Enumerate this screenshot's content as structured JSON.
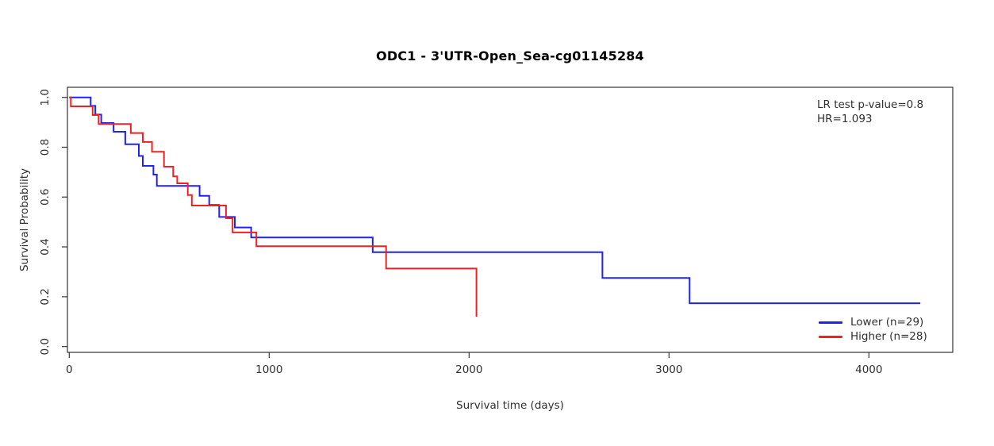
{
  "title": "ODC1 - 3'UTR-Open_Sea-cg01145284",
  "annotation": {
    "lines": [
      "LR test p-value=0.8",
      "HR=1.093"
    ]
  },
  "legend": {
    "items": [
      {
        "label": "Lower (n=29)",
        "color": "#2222ee"
      },
      {
        "label": "Higher (n=28)",
        "color": "#ee2222"
      }
    ]
  },
  "axes": {
    "x_label": "Survival time (days)",
    "y_label": "Survival Probability"
  },
  "chart_data": {
    "type": "line",
    "subtype": "kaplan_meier_step",
    "title": "ODC1 - 3'UTR-Open_Sea-cg01145284",
    "xlabel": "Survival time (days)",
    "ylabel": "Survival Probability",
    "xlim": [
      0,
      4430
    ],
    "ylim": [
      0,
      1.04
    ],
    "grid": false,
    "legend_position": "bottom-right",
    "x_ticks": [
      {
        "value": 0,
        "label": "0"
      },
      {
        "value": 1000,
        "label": "1000"
      },
      {
        "value": 2000,
        "label": "2000"
      },
      {
        "value": 3000,
        "label": "3000"
      },
      {
        "value": 4000,
        "label": "4000"
      }
    ],
    "y_ticks": [
      {
        "value": 1.0,
        "label": "1.0"
      },
      {
        "value": 0.8,
        "label": "0.8"
      },
      {
        "value": 0.6,
        "label": "0.6"
      },
      {
        "value": 0.4,
        "label": "0.4"
      },
      {
        "value": 0.2,
        "label": "0.2"
      },
      {
        "value": 0.0,
        "label": "0.0"
      }
    ],
    "stats": {
      "lr_test_p_value": 0.8,
      "hr": 1.093
    },
    "series": [
      {
        "name": "Lower (n=29)",
        "color": "#2222ee",
        "start": [
          0,
          1.0
        ],
        "steps": [
          [
            107,
            0.966
          ],
          [
            130,
            0.931
          ],
          [
            160,
            0.897
          ],
          [
            222,
            0.862
          ],
          [
            280,
            0.812
          ],
          [
            348,
            0.765
          ],
          [
            368,
            0.725
          ],
          [
            421,
            0.69
          ],
          [
            438,
            0.645
          ],
          [
            652,
            0.605
          ],
          [
            700,
            0.568
          ],
          [
            750,
            0.52
          ],
          [
            828,
            0.478
          ],
          [
            910,
            0.438
          ],
          [
            1518,
            0.379
          ],
          [
            2667,
            0.275
          ],
          [
            3103,
            0.174
          ]
        ],
        "end_time": 4257
      },
      {
        "name": "Higher (n=28)",
        "color": "#ee2222",
        "start": [
          0,
          1.0
        ],
        "steps": [
          [
            8,
            0.964
          ],
          [
            117,
            0.929
          ],
          [
            147,
            0.893
          ],
          [
            308,
            0.857
          ],
          [
            368,
            0.821
          ],
          [
            414,
            0.782
          ],
          [
            474,
            0.722
          ],
          [
            520,
            0.683
          ],
          [
            540,
            0.655
          ],
          [
            593,
            0.608
          ],
          [
            613,
            0.566
          ],
          [
            784,
            0.515
          ],
          [
            817,
            0.458
          ],
          [
            936,
            0.403
          ],
          [
            1585,
            0.313
          ],
          [
            2037,
            0.12
          ]
        ],
        "end_time": null
      }
    ]
  }
}
